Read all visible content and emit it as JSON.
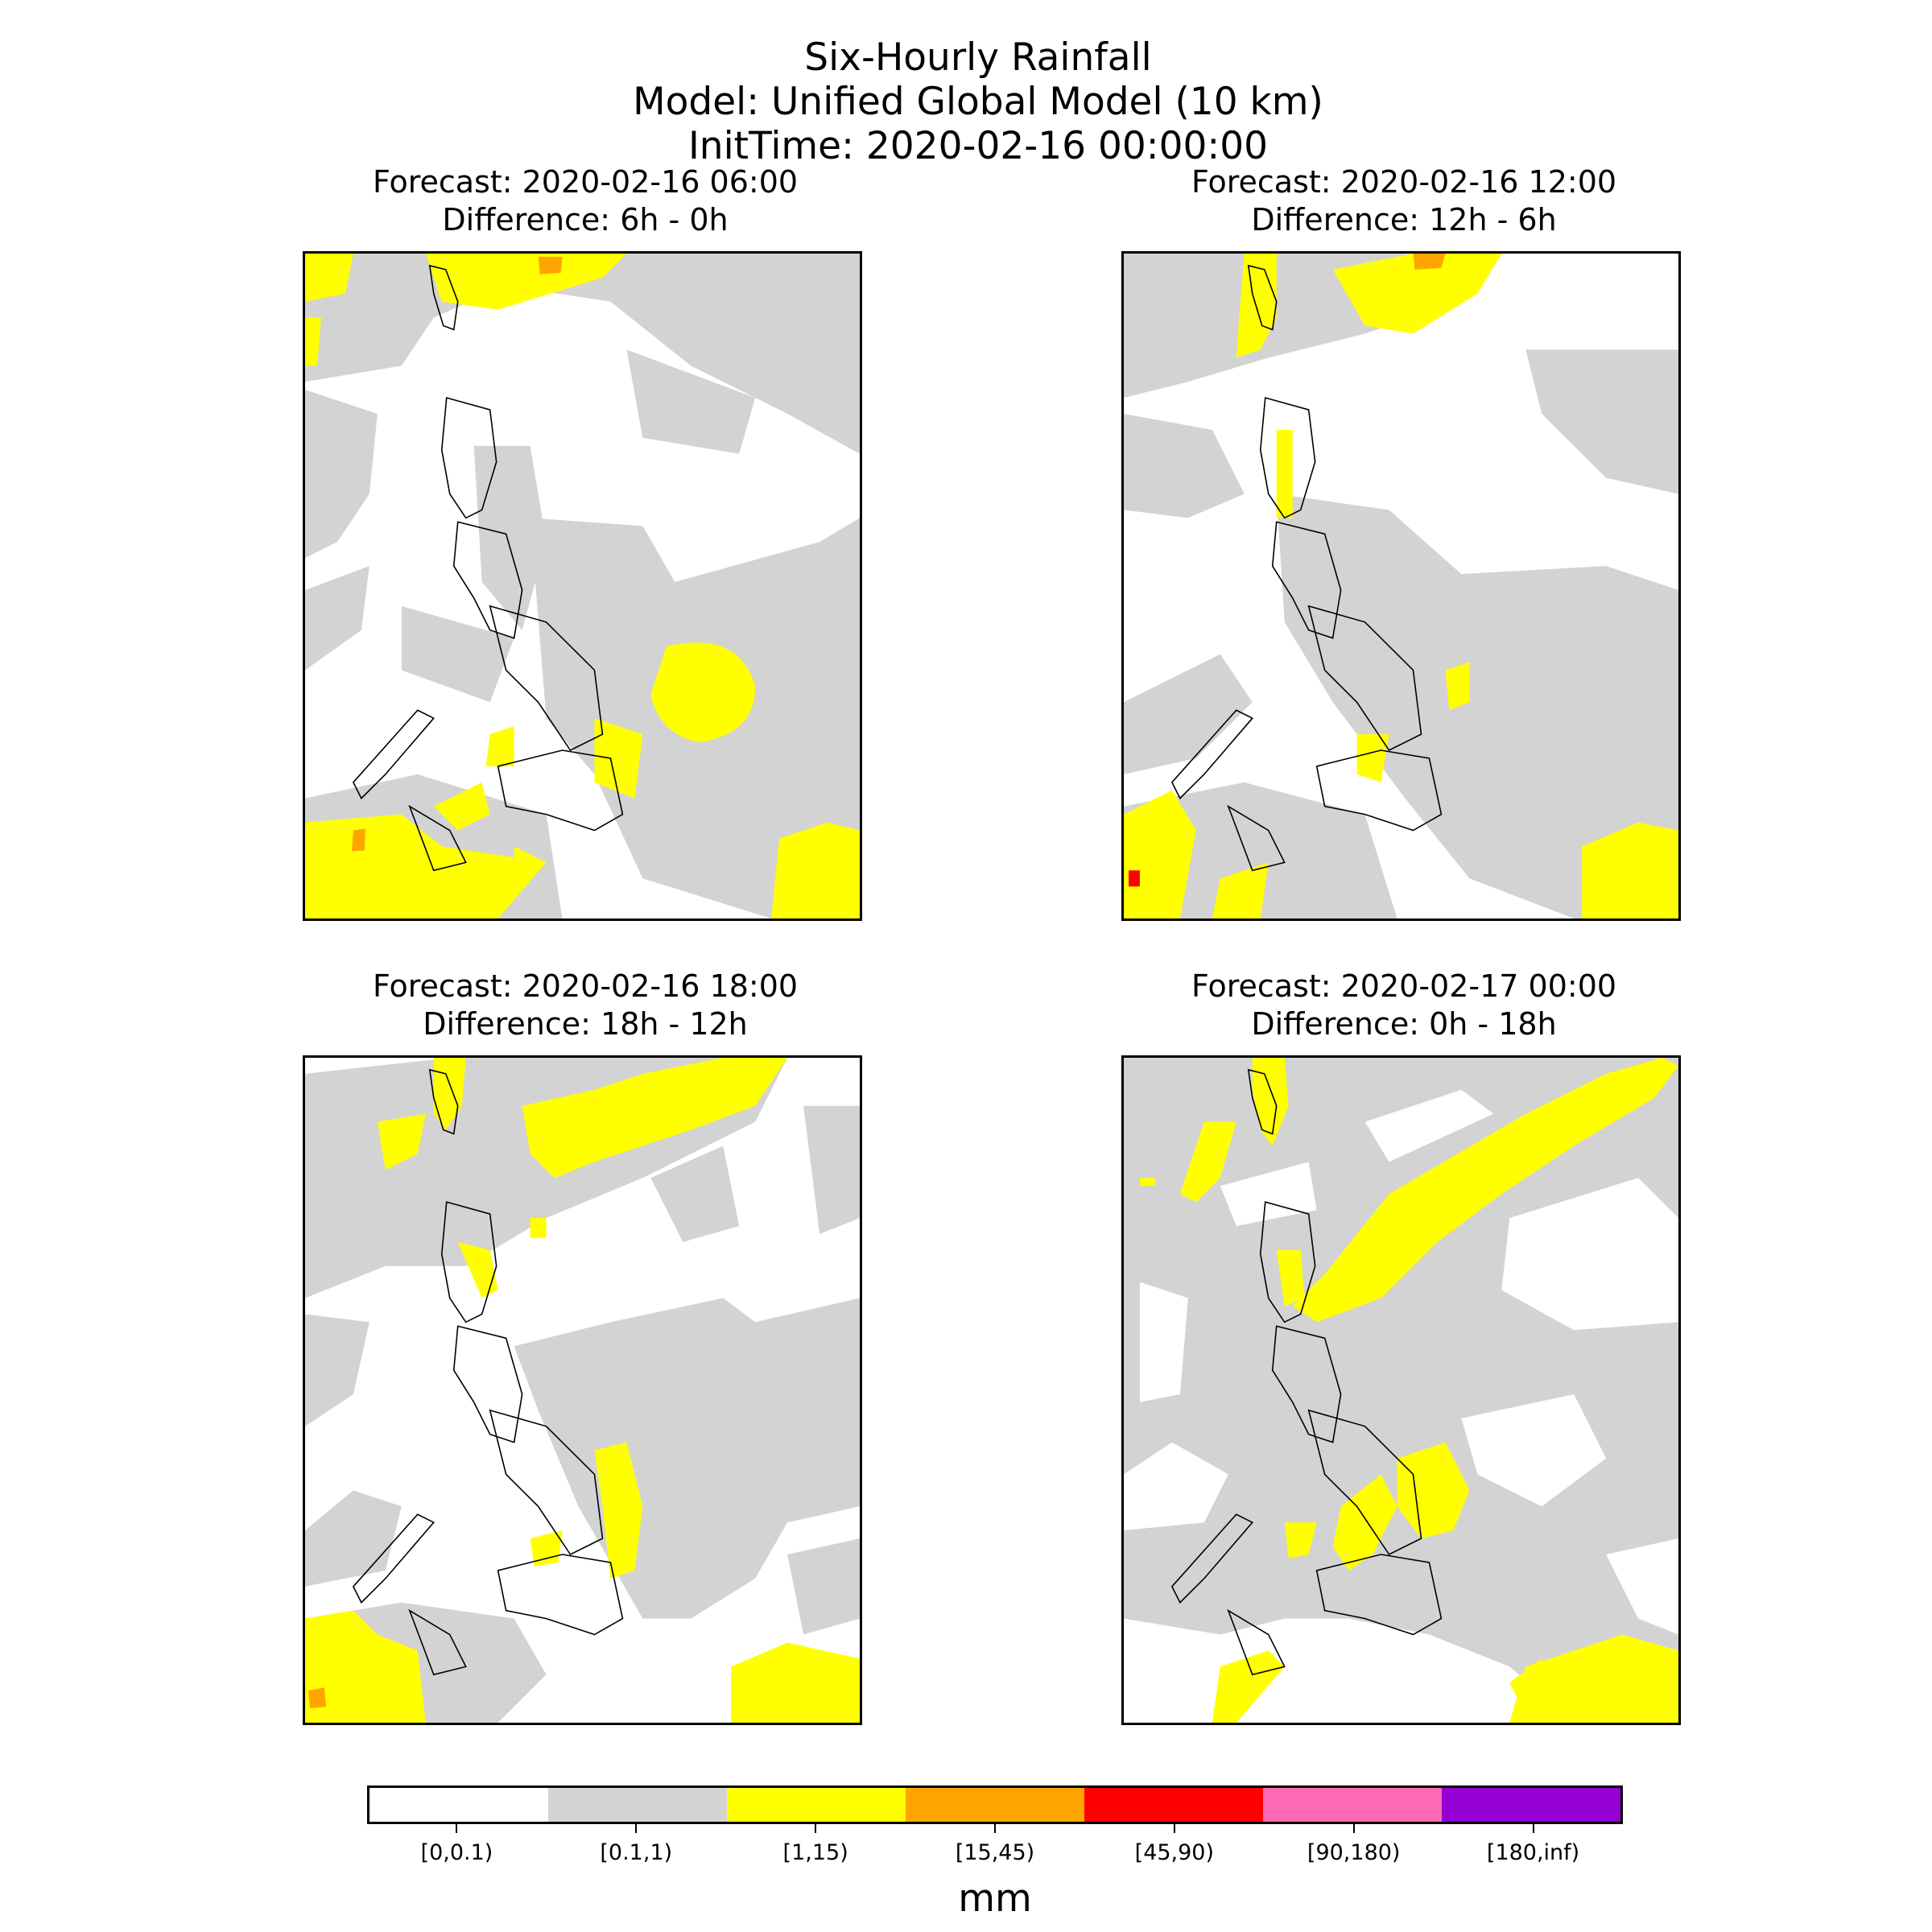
{
  "figure": {
    "title_line1": "Six-Hourly Rainfall",
    "title_line2": "Model: Unified Global Model (10 km)",
    "title_line3": "InitTime: 2020-02-16 00:00:00"
  },
  "panels": [
    {
      "forecast": "Forecast: 2020-02-16 06:00",
      "difference": "Difference: 6h - 0h"
    },
    {
      "forecast": "Forecast: 2020-02-16 12:00",
      "difference": "Difference: 12h - 6h"
    },
    {
      "forecast": "Forecast: 2020-02-16 18:00",
      "difference": "Difference: 18h - 12h"
    },
    {
      "forecast": "Forecast: 2020-02-17 00:00",
      "difference": "Difference: 0h - 18h"
    }
  ],
  "colorbar": {
    "unit": "mm",
    "bins": [
      {
        "label": "[0,0.1)",
        "color": "#ffffff"
      },
      {
        "label": "[0.1,1)",
        "color": "#d3d3d3"
      },
      {
        "label": "[1,15)",
        "color": "#ffff00"
      },
      {
        "label": "[15,45)",
        "color": "#ffa500"
      },
      {
        "label": "[45,90)",
        "color": "#ff0000"
      },
      {
        "label": "[90,180)",
        "color": "#ff69b4"
      },
      {
        "label": "[180,inf)",
        "color": "#9400d3"
      }
    ]
  }
}
